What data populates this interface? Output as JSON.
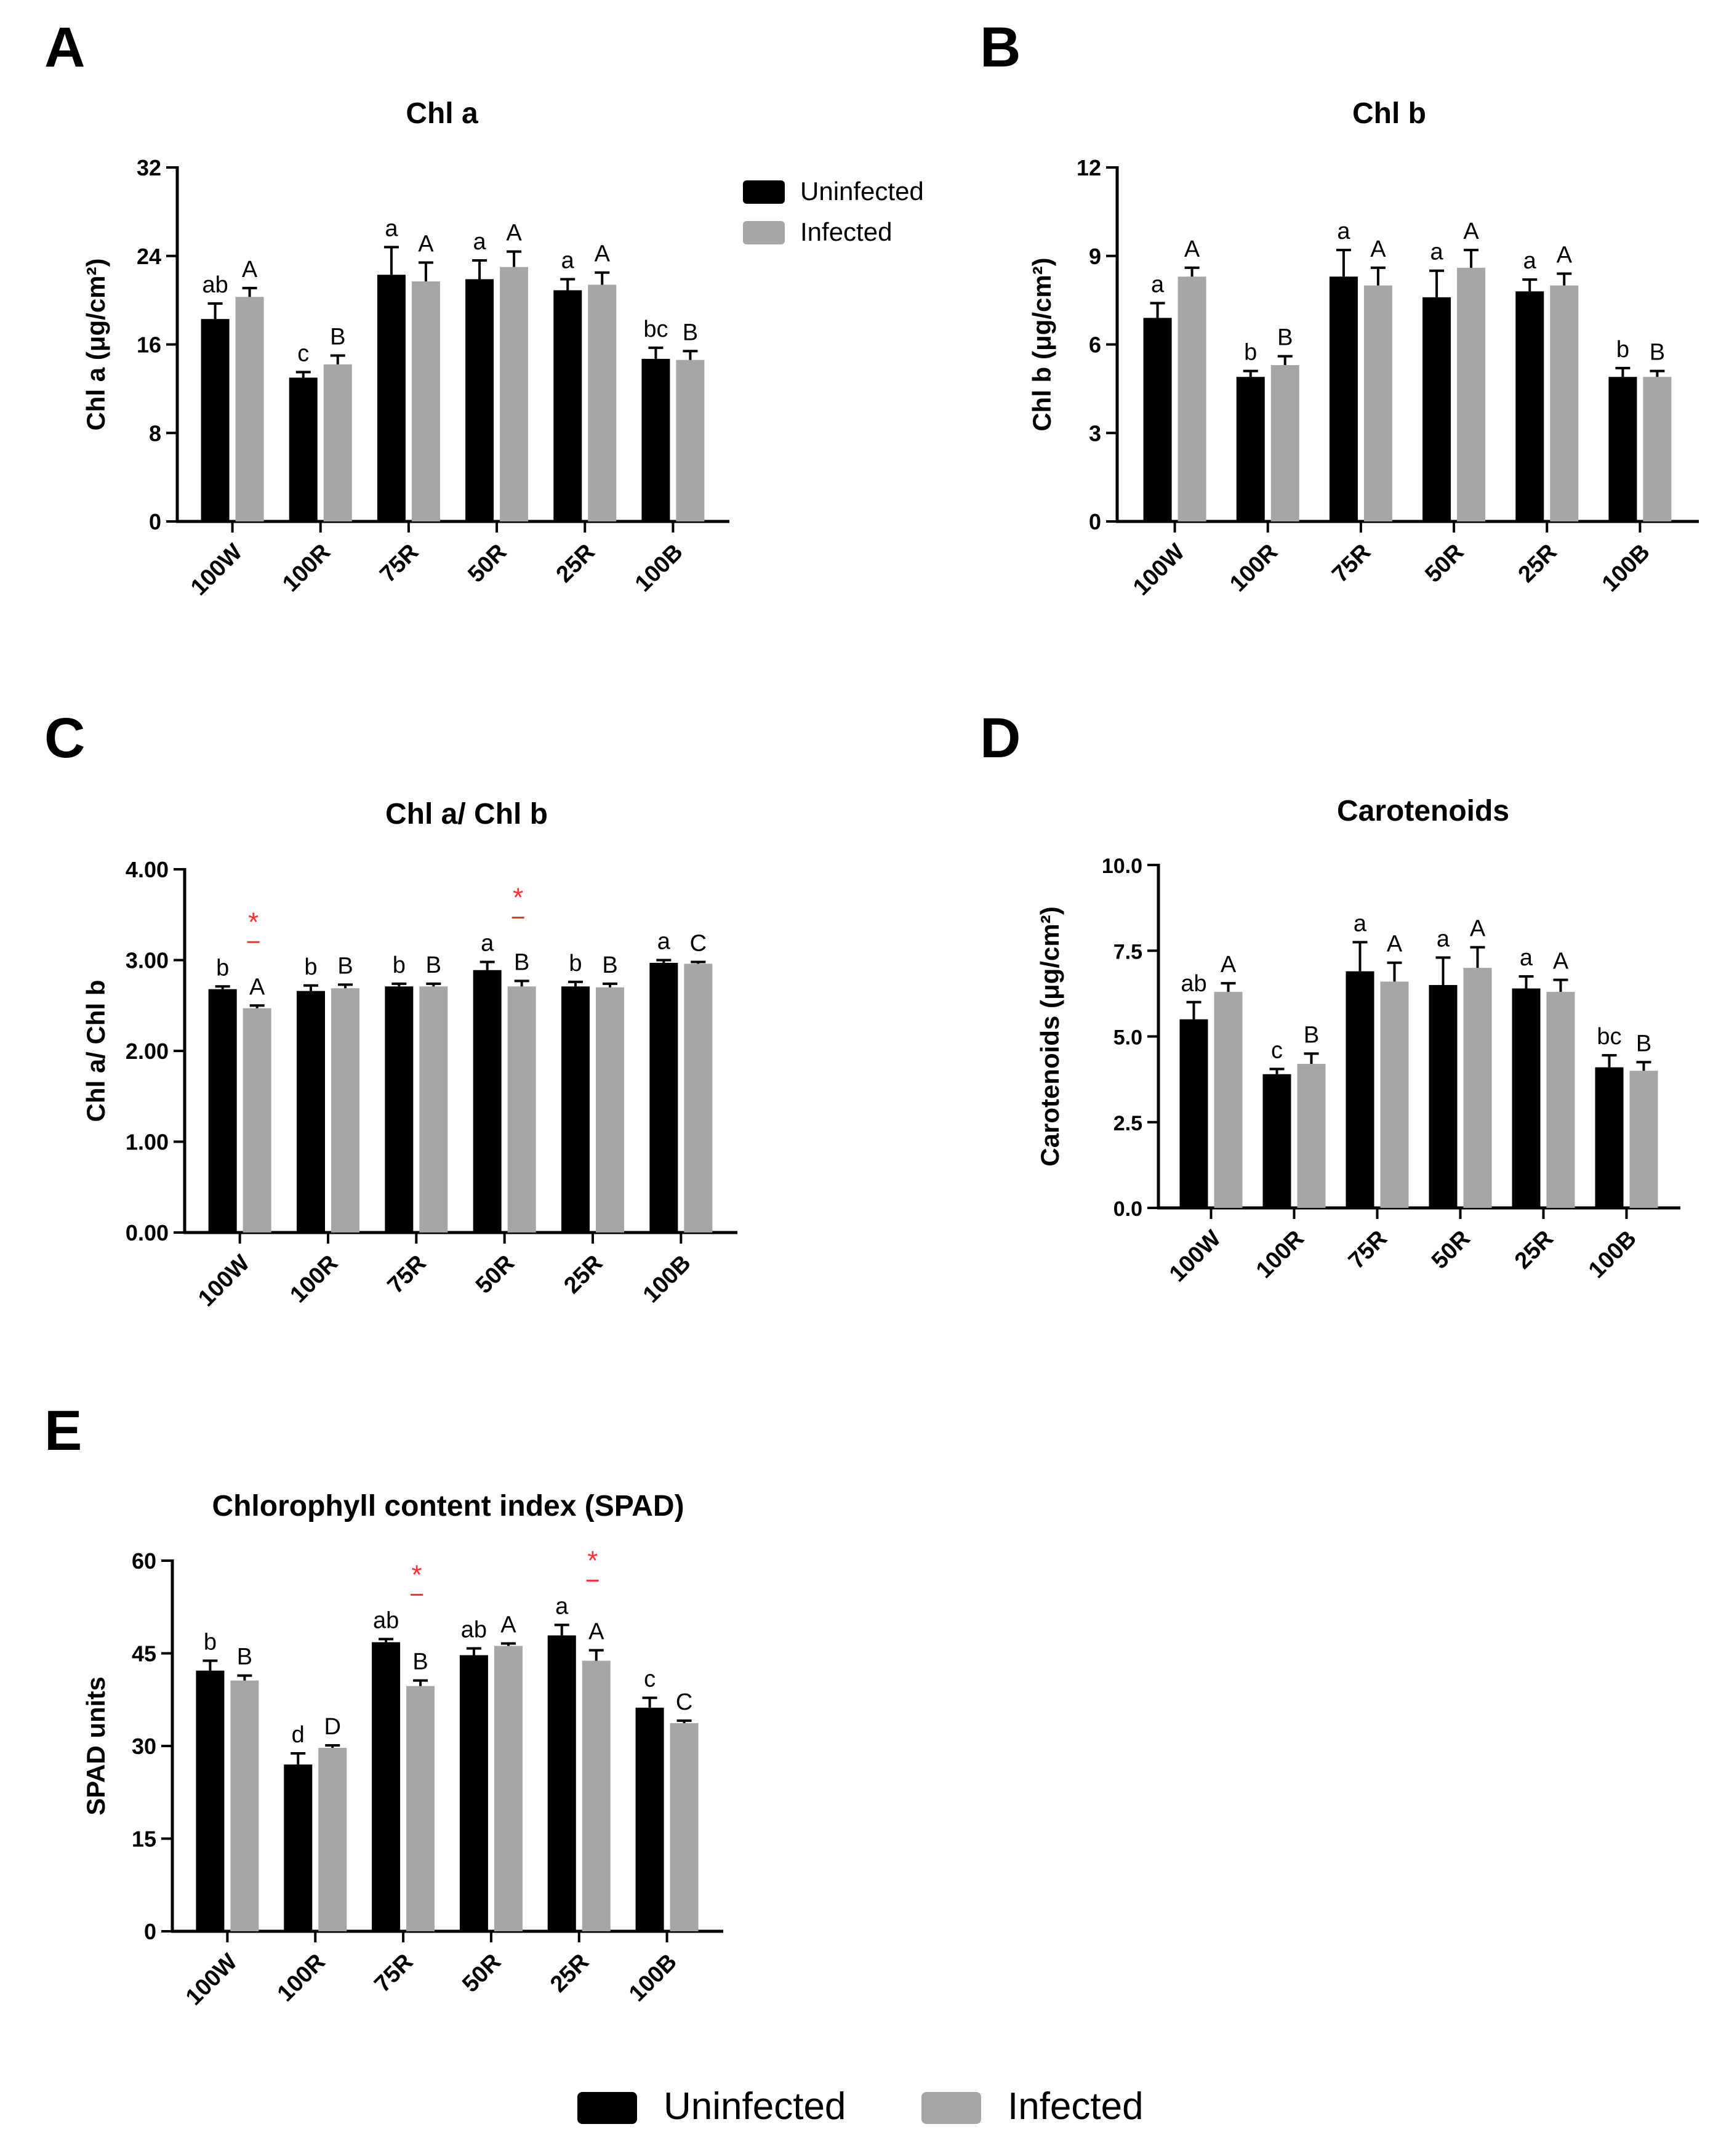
{
  "legend": {
    "uninfected": "Uninfected",
    "infected": "Infected"
  },
  "colors": {
    "uninfected": "#000000",
    "infected": "#a6a6a6",
    "star": "#ff3030"
  },
  "chart_data": [
    {
      "panel": "A",
      "type": "bar",
      "title": "Chl a",
      "ylabel": "Chl a (μg/cm²)",
      "ylim": [
        0,
        32
      ],
      "yticks": [
        "0",
        "8",
        "16",
        "24",
        "32"
      ],
      "categories": [
        "100W",
        "100R",
        "75R",
        "50R",
        "25R",
        "100B"
      ],
      "legend_position": "top-right",
      "series": [
        {
          "name": "Uninfected",
          "values": [
            18.3,
            13.0,
            22.3,
            21.9,
            20.9,
            14.7
          ],
          "errors": [
            1.4,
            0.5,
            2.5,
            1.7,
            1.0,
            1.0
          ],
          "letters": [
            "ab",
            "c",
            "a",
            "a",
            "a",
            "bc"
          ]
        },
        {
          "name": "Infected",
          "values": [
            20.3,
            14.2,
            21.7,
            23.0,
            21.4,
            14.6
          ],
          "errors": [
            0.8,
            0.8,
            1.7,
            1.4,
            1.1,
            0.8
          ],
          "letters": [
            "A",
            "B",
            "A",
            "A",
            "A",
            "B"
          ]
        }
      ],
      "stars": []
    },
    {
      "panel": "B",
      "type": "bar",
      "title": "Chl b",
      "ylabel": "Chl b (μg/cm²)",
      "ylim": [
        0,
        12
      ],
      "yticks": [
        "0",
        "3",
        "6",
        "9",
        "12"
      ],
      "categories": [
        "100W",
        "100R",
        "75R",
        "50R",
        "25R",
        "100B"
      ],
      "series": [
        {
          "name": "Uninfected",
          "values": [
            6.9,
            4.9,
            8.3,
            7.6,
            7.8,
            4.9
          ],
          "errors": [
            0.5,
            0.2,
            0.9,
            0.9,
            0.4,
            0.3
          ],
          "letters": [
            "a",
            "b",
            "a",
            "a",
            "a",
            "b"
          ]
        },
        {
          "name": "Infected",
          "values": [
            8.3,
            5.3,
            8.0,
            8.6,
            8.0,
            4.9
          ],
          "errors": [
            0.3,
            0.3,
            0.6,
            0.6,
            0.4,
            0.2
          ],
          "letters": [
            "A",
            "B",
            "A",
            "A",
            "A",
            "B"
          ]
        }
      ],
      "stars": []
    },
    {
      "panel": "C",
      "type": "bar",
      "title": "Chl a/ Chl b",
      "ylabel": "Chl a/ Chl b",
      "ylim": [
        0,
        4
      ],
      "yticks": [
        "0.00",
        "1.00",
        "2.00",
        "3.00",
        "4.00"
      ],
      "categories": [
        "100W",
        "100R",
        "75R",
        "50R",
        "25R",
        "100B"
      ],
      "series": [
        {
          "name": "Uninfected",
          "values": [
            2.68,
            2.66,
            2.71,
            2.89,
            2.71,
            2.97
          ],
          "errors": [
            0.03,
            0.06,
            0.03,
            0.09,
            0.05,
            0.03
          ],
          "letters": [
            "b",
            "b",
            "b",
            "a",
            "b",
            "a"
          ]
        },
        {
          "name": "Infected",
          "values": [
            2.47,
            2.69,
            2.71,
            2.71,
            2.7,
            2.96
          ],
          "errors": [
            0.03,
            0.04,
            0.03,
            0.06,
            0.04,
            0.02
          ],
          "letters": [
            "A",
            "B",
            "B",
            "B",
            "B",
            "C"
          ]
        }
      ],
      "stars": [
        0,
        3
      ]
    },
    {
      "panel": "D",
      "type": "bar",
      "title": "Carotenoids",
      "ylabel": "Carotenoids (μg/cm²)",
      "ylim": [
        0,
        10
      ],
      "yticks": [
        "0.0",
        "2.5",
        "5.0",
        "7.5",
        "10.0"
      ],
      "categories": [
        "100W",
        "100R",
        "75R",
        "50R",
        "25R",
        "100B"
      ],
      "series": [
        {
          "name": "Uninfected",
          "values": [
            5.5,
            3.9,
            6.9,
            6.5,
            6.4,
            4.1
          ],
          "errors": [
            0.5,
            0.15,
            0.85,
            0.8,
            0.35,
            0.35
          ],
          "letters": [
            "ab",
            "c",
            "a",
            "a",
            "a",
            "bc"
          ]
        },
        {
          "name": "Infected",
          "values": [
            6.3,
            4.2,
            6.6,
            7.0,
            6.3,
            4.0
          ],
          "errors": [
            0.25,
            0.3,
            0.55,
            0.6,
            0.35,
            0.25
          ],
          "letters": [
            "A",
            "B",
            "A",
            "A",
            "A",
            "B"
          ]
        }
      ],
      "stars": []
    },
    {
      "panel": "E",
      "type": "bar",
      "title": "Chlorophyll content index (SPAD)",
      "ylabel": "SPAD units",
      "ylim": [
        0,
        60
      ],
      "yticks": [
        "0",
        "15",
        "30",
        "45",
        "60"
      ],
      "categories": [
        "100W",
        "100R",
        "75R",
        "50R",
        "25R",
        "100B"
      ],
      "series": [
        {
          "name": "Uninfected",
          "values": [
            42.2,
            27.0,
            46.8,
            44.7,
            47.9,
            36.2
          ],
          "errors": [
            1.6,
            1.8,
            0.5,
            1.1,
            1.7,
            1.6
          ],
          "letters": [
            "b",
            "d",
            "ab",
            "ab",
            "a",
            "c"
          ]
        },
        {
          "name": "Infected",
          "values": [
            40.6,
            29.7,
            39.7,
            46.2,
            43.8,
            33.7
          ],
          "errors": [
            0.8,
            0.4,
            0.9,
            0.4,
            1.7,
            0.4
          ],
          "letters": [
            "B",
            "D",
            "B",
            "A",
            "A",
            "C"
          ]
        }
      ],
      "stars": [
        2,
        4
      ]
    }
  ]
}
